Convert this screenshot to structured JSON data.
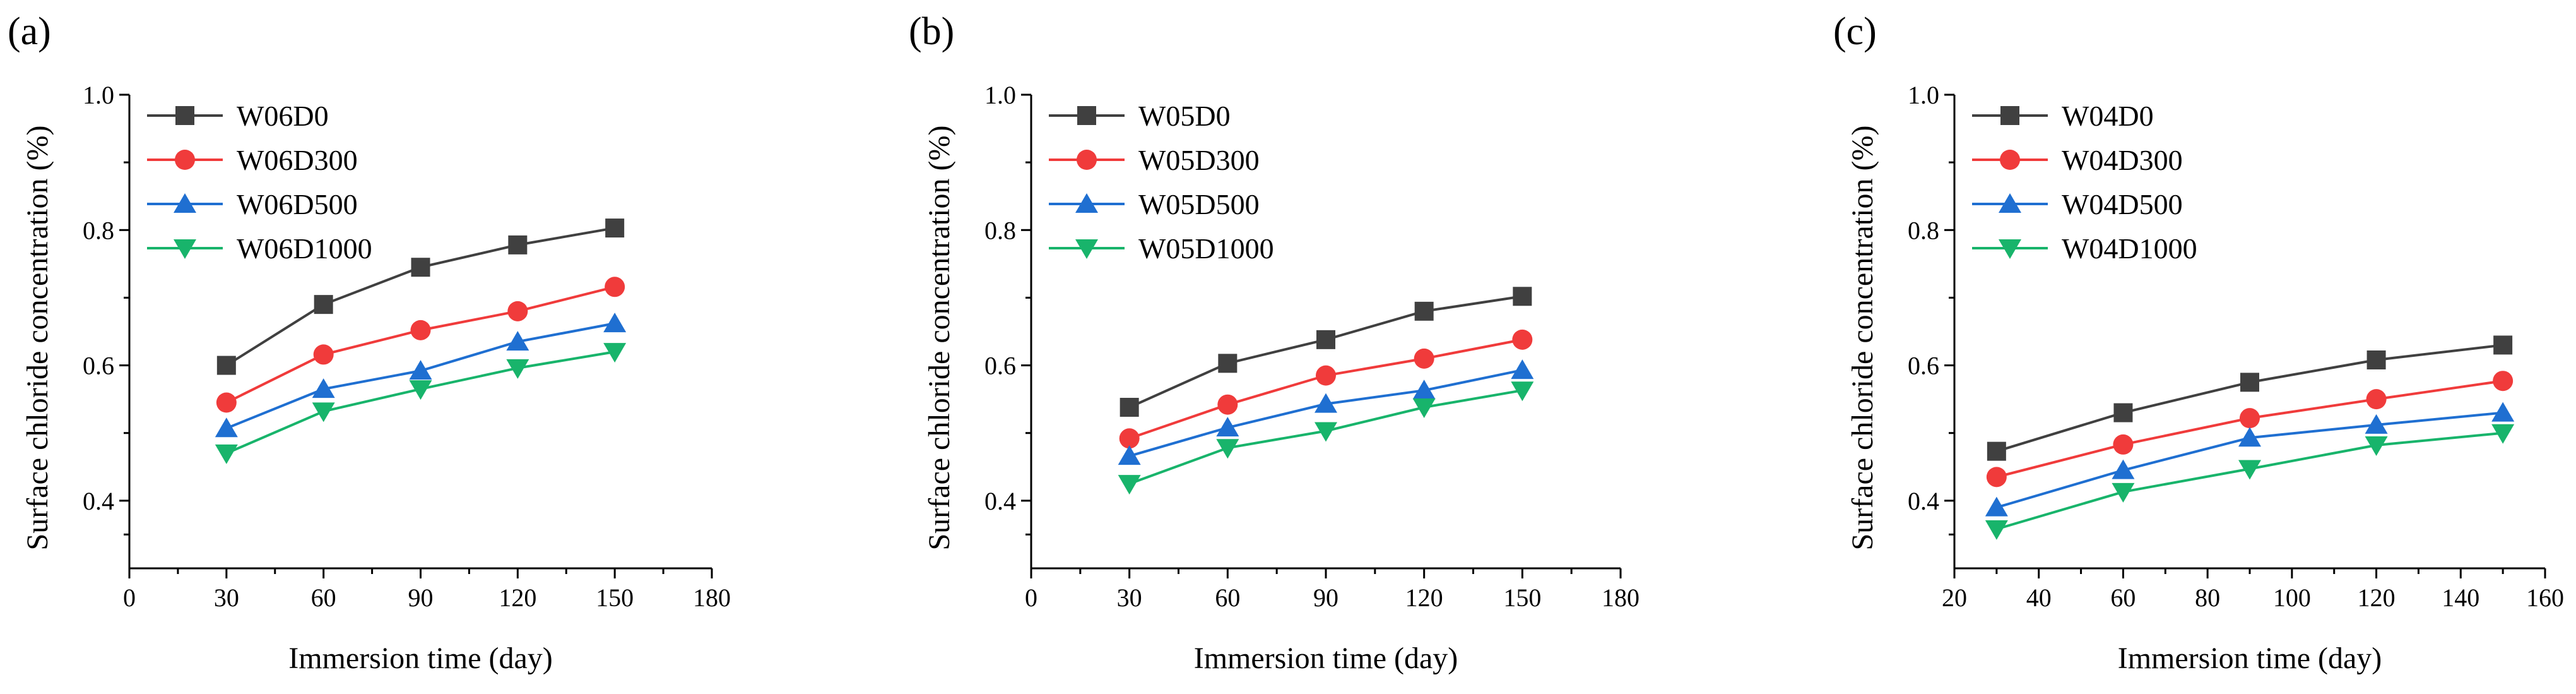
{
  "figure": {
    "background": "#ffffff",
    "axis_color": "#000000"
  },
  "chart_data": [
    {
      "type": "line",
      "panel_label": "(a)",
      "title": "",
      "xlabel": "Immersion time (day)",
      "ylabel": "Surface chloride concentration (%)",
      "xlim": [
        0,
        180
      ],
      "ylim": [
        0.3,
        1.0
      ],
      "xticks": [
        0,
        30,
        60,
        90,
        120,
        150,
        180
      ],
      "xtick_labels": [
        "0",
        "30",
        "60",
        "90",
        "120",
        "150",
        "180"
      ],
      "yticks": [
        0.4,
        0.6,
        0.8,
        1.0
      ],
      "ytick_labels": [
        "0.4",
        "0.6",
        "0.8",
        "1.0"
      ],
      "grid": false,
      "legend_position": "top-left",
      "x": [
        30,
        60,
        90,
        120,
        150
      ],
      "series": [
        {
          "name": "W06D0",
          "color": "#404040",
          "marker": "square",
          "values": [
            0.6,
            0.69,
            0.745,
            0.778,
            0.803
          ]
        },
        {
          "name": "W06D300",
          "color": "#f03b3b",
          "marker": "circle",
          "values": [
            0.545,
            0.616,
            0.652,
            0.68,
            0.716
          ]
        },
        {
          "name": "W06D500",
          "color": "#1f6fd1",
          "marker": "triangle-up",
          "values": [
            0.507,
            0.565,
            0.592,
            0.635,
            0.662
          ]
        },
        {
          "name": "W06D1000",
          "color": "#18b46b",
          "marker": "triangle-down",
          "values": [
            0.47,
            0.532,
            0.565,
            0.596,
            0.62
          ]
        }
      ]
    },
    {
      "type": "line",
      "panel_label": "(b)",
      "title": "",
      "xlabel": "Immersion time (day)",
      "ylabel": "Surface chloride concentration (%)",
      "xlim": [
        0,
        180
      ],
      "ylim": [
        0.3,
        1.0
      ],
      "xticks": [
        0,
        30,
        60,
        90,
        120,
        150,
        180
      ],
      "xtick_labels": [
        "0",
        "30",
        "60",
        "90",
        "120",
        "150",
        "180"
      ],
      "yticks": [
        0.4,
        0.6,
        0.8,
        1.0
      ],
      "ytick_labels": [
        "0.4",
        "0.6",
        "0.8",
        "1.0"
      ],
      "grid": false,
      "legend_position": "top-left",
      "x": [
        30,
        60,
        90,
        120,
        150
      ],
      "series": [
        {
          "name": "W05D0",
          "color": "#404040",
          "marker": "square",
          "values": [
            0.538,
            0.603,
            0.638,
            0.68,
            0.702
          ]
        },
        {
          "name": "W05D300",
          "color": "#f03b3b",
          "marker": "circle",
          "values": [
            0.492,
            0.542,
            0.585,
            0.61,
            0.638
          ]
        },
        {
          "name": "W05D500",
          "color": "#1f6fd1",
          "marker": "triangle-up",
          "values": [
            0.466,
            0.508,
            0.543,
            0.563,
            0.593
          ]
        },
        {
          "name": "W05D1000",
          "color": "#18b46b",
          "marker": "triangle-down",
          "values": [
            0.425,
            0.478,
            0.503,
            0.538,
            0.563
          ]
        }
      ]
    },
    {
      "type": "line",
      "panel_label": "(c)",
      "title": "",
      "xlabel": "Immersion time (day)",
      "ylabel": "Surface chloride concentration (%)",
      "xlim": [
        20,
        160
      ],
      "ylim": [
        0.3,
        1.0
      ],
      "xticks": [
        20,
        40,
        60,
        80,
        100,
        120,
        140,
        160
      ],
      "xtick_labels": [
        "20",
        "40",
        "60",
        "80",
        "100",
        "120",
        "140",
        "160"
      ],
      "yticks": [
        0.4,
        0.6,
        0.8,
        1.0
      ],
      "ytick_labels": [
        "0.4",
        "0.6",
        "0.8",
        "1.0"
      ],
      "grid": false,
      "legend_position": "top-left",
      "x": [
        30,
        60,
        90,
        120,
        150
      ],
      "series": [
        {
          "name": "W04D0",
          "color": "#404040",
          "marker": "square",
          "values": [
            0.473,
            0.53,
            0.575,
            0.608,
            0.63
          ]
        },
        {
          "name": "W04D300",
          "color": "#f03b3b",
          "marker": "circle",
          "values": [
            0.435,
            0.483,
            0.522,
            0.55,
            0.577
          ]
        },
        {
          "name": "W04D500",
          "color": "#1f6fd1",
          "marker": "triangle-up",
          "values": [
            0.39,
            0.445,
            0.493,
            0.512,
            0.53
          ]
        },
        {
          "name": "W04D1000",
          "color": "#18b46b",
          "marker": "triangle-down",
          "values": [
            0.358,
            0.413,
            0.447,
            0.482,
            0.5
          ]
        }
      ]
    }
  ]
}
